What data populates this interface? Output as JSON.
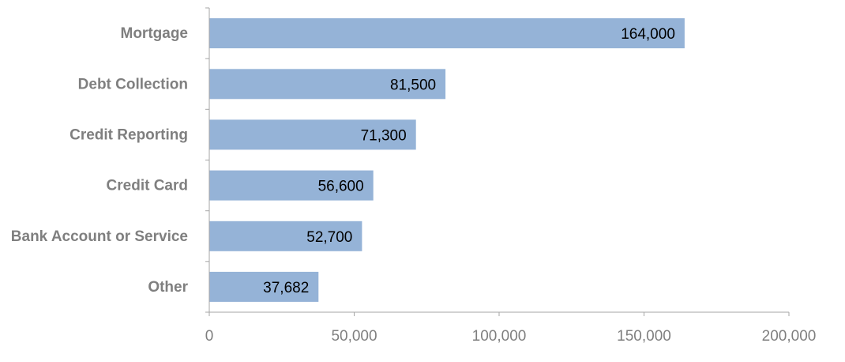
{
  "chart_data": {
    "type": "bar",
    "orientation": "horizontal",
    "categories": [
      "Mortgage",
      "Debt Collection",
      "Credit Reporting",
      "Credit Card",
      "Bank Account or Service",
      "Other"
    ],
    "values": [
      164000,
      81500,
      71300,
      56600,
      52700,
      37682
    ],
    "data_labels": [
      "164,000",
      "81,500",
      "71,300",
      "56,600",
      "52,700",
      "37,682"
    ],
    "xlim": [
      0,
      200000
    ],
    "x_ticks": [
      0,
      50000,
      100000,
      150000,
      200000
    ],
    "x_tick_labels": [
      "0",
      "50,000",
      "100,000",
      "150,000",
      "200,000"
    ],
    "grid": false,
    "legend": "none",
    "colors": {
      "bar": "#95b3d7",
      "axis": "#a6a6a6",
      "category_text": "#7f7f7f",
      "tick_text": "#7f7f7f",
      "data_label_text": "#000000"
    }
  }
}
